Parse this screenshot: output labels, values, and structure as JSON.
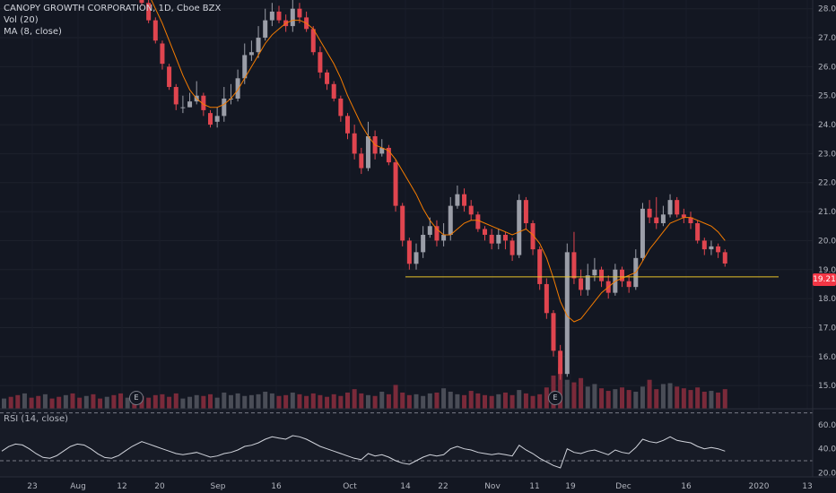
{
  "legend": {
    "title": "CANOPY GROWTH CORPORATION, 1D, Cboe BZX",
    "volume": "Vol (20)",
    "ma": "MA (8, close)",
    "rsi": "RSI (14, close)"
  },
  "last_price_label": "19.21",
  "earnings_marker": "E",
  "colors": {
    "background": "#131722",
    "up": "#9b9ea8",
    "down": "#e0454f",
    "vol_up": "#4a4d57",
    "vol_down": "#7a2a3a",
    "ma": "#f57c00",
    "support": "#e6c229",
    "rsi": "#d1d4dc",
    "axis_text": "#b2b5be"
  },
  "chart_data": {
    "type": "candlestick",
    "y_ticks": [
      "28.00",
      "27.00",
      "26.00",
      "25.00",
      "24.00",
      "23.00",
      "22.00",
      "21.00",
      "20.00",
      "19.00",
      "18.00",
      "17.00",
      "16.00",
      "15.00"
    ],
    "ylim": [
      14.2,
      28.3
    ],
    "x_ticks": [
      "23",
      "Aug",
      "12",
      "20",
      "Sep",
      "16",
      "Oct",
      "14",
      "22",
      "Nov",
      "11",
      "19",
      "Dec",
      "16",
      "2020",
      "13"
    ],
    "rsi_ticks": [
      "60.00",
      "40.00",
      "20.00"
    ],
    "rsi_ylim": [
      18,
      72
    ],
    "rsi_bands": [
      70,
      30
    ],
    "support_level": 18.75,
    "last_price": 19.21,
    "series": [
      {
        "name": "Candles",
        "o": [
          28.8,
          28.2,
          27.6,
          26.8,
          26.0,
          25.3,
          24.6,
          24.6,
          24.8,
          25.0,
          24.4,
          24.1,
          24.3,
          24.9,
          24.9,
          25.6,
          26.4,
          26.5,
          27.0,
          27.6,
          27.9,
          27.6,
          27.4,
          28.0,
          27.7,
          27.3,
          26.5,
          25.8,
          25.4,
          24.9,
          24.3,
          23.7,
          23.0,
          22.5,
          23.6,
          23.0,
          23.2,
          22.7,
          21.2,
          20.0,
          19.2,
          19.6,
          20.2,
          20.5,
          20.0,
          20.2,
          21.2,
          21.6,
          21.2,
          20.9,
          20.4,
          20.2,
          19.9,
          20.2,
          20.0,
          19.5,
          21.4,
          20.6,
          19.7,
          18.5,
          17.5,
          16.2,
          15.4,
          19.6,
          18.7,
          18.3,
          18.8,
          19.0,
          18.6,
          18.2,
          19.0,
          18.6,
          18.4,
          19.4,
          21.1,
          20.8,
          20.6,
          20.9,
          21.4,
          20.9,
          20.8,
          20.6,
          20.0,
          19.7,
          19.8,
          19.6
        ],
        "c": [
          28.2,
          27.6,
          26.9,
          26.1,
          25.3,
          24.7,
          24.6,
          24.8,
          25.0,
          24.5,
          24.0,
          24.3,
          24.9,
          24.9,
          25.6,
          26.4,
          26.5,
          27.0,
          27.6,
          27.9,
          27.6,
          27.4,
          28.0,
          27.7,
          27.3,
          26.5,
          25.8,
          25.4,
          24.9,
          24.3,
          23.7,
          23.0,
          22.5,
          23.6,
          23.0,
          23.2,
          22.7,
          21.2,
          20.0,
          19.2,
          19.6,
          20.2,
          20.5,
          20.0,
          20.2,
          21.2,
          21.6,
          21.2,
          20.9,
          20.4,
          20.2,
          19.9,
          20.2,
          20.0,
          19.5,
          21.4,
          20.6,
          19.7,
          18.5,
          17.5,
          16.2,
          15.4,
          19.6,
          18.7,
          18.3,
          18.8,
          19.0,
          18.6,
          18.2,
          19.0,
          18.6,
          18.4,
          19.4,
          21.1,
          20.8,
          20.6,
          20.9,
          21.4,
          20.9,
          20.8,
          20.6,
          20.0,
          19.7,
          19.8,
          19.6,
          19.21
        ],
        "h": [
          28.9,
          28.3,
          27.7,
          26.9,
          26.1,
          25.4,
          25.0,
          25.1,
          25.5,
          25.1,
          24.5,
          24.6,
          25.3,
          25.4,
          25.9,
          26.8,
          26.9,
          27.4,
          28.0,
          28.2,
          28.1,
          27.8,
          28.3,
          28.2,
          27.9,
          27.4,
          26.7,
          25.9,
          25.5,
          25.0,
          24.4,
          24.0,
          23.2,
          24.1,
          23.8,
          23.5,
          23.3,
          22.8,
          21.3,
          20.1,
          19.9,
          20.5,
          20.8,
          20.7,
          20.6,
          21.5,
          21.9,
          21.8,
          21.4,
          21.0,
          20.5,
          20.4,
          20.4,
          20.3,
          20.1,
          21.6,
          21.5,
          20.7,
          19.8,
          18.7,
          17.6,
          16.4,
          19.9,
          20.3,
          19.0,
          19.2,
          19.4,
          19.1,
          18.8,
          19.2,
          19.1,
          18.8,
          19.7,
          21.3,
          21.4,
          21.5,
          21.2,
          21.6,
          21.5,
          21.1,
          21.0,
          20.7,
          20.1,
          20.0,
          19.9,
          19.7
        ],
        "l": [
          28.1,
          27.5,
          26.8,
          25.9,
          25.2,
          24.5,
          24.4,
          24.6,
          24.7,
          24.3,
          23.9,
          23.9,
          24.1,
          24.7,
          24.8,
          25.4,
          26.2,
          26.3,
          26.9,
          27.4,
          27.5,
          27.2,
          27.2,
          27.5,
          27.2,
          26.4,
          25.6,
          25.2,
          24.8,
          24.1,
          23.5,
          22.8,
          22.3,
          22.4,
          22.8,
          22.9,
          22.6,
          21.0,
          19.8,
          19.0,
          19.0,
          19.4,
          20.1,
          19.8,
          19.8,
          20.0,
          21.1,
          21.0,
          20.7,
          20.3,
          20.0,
          19.7,
          19.7,
          19.7,
          19.3,
          19.4,
          20.4,
          19.5,
          18.3,
          17.3,
          16.0,
          15.2,
          15.3,
          18.5,
          18.1,
          18.1,
          18.6,
          18.4,
          18.0,
          18.1,
          18.4,
          18.2,
          18.3,
          19.3,
          20.6,
          20.4,
          20.5,
          20.8,
          20.8,
          20.6,
          20.4,
          19.9,
          19.5,
          19.5,
          19.4,
          19.1
        ]
      },
      {
        "name": "Vol",
        "values": [
          1.5,
          1.3,
          1.6,
          1.7,
          1.4,
          1.8,
          1.2,
          1.4,
          1.6,
          1.5,
          1.7,
          1.3,
          1.9,
          1.6,
          1.8,
          1.5,
          1.6,
          1.7,
          2.0,
          1.8,
          1.5,
          1.6,
          1.9,
          1.7,
          1.5,
          1.8,
          1.6,
          1.4,
          1.7,
          1.5,
          1.9,
          2.3,
          1.8,
          1.6,
          1.5,
          2.0,
          1.7,
          2.8,
          1.9,
          1.6,
          1.7,
          1.5,
          1.8,
          1.9,
          2.4,
          2.0,
          1.7,
          1.6,
          2.1,
          1.8,
          1.6,
          1.5,
          1.7,
          1.9,
          1.6,
          2.2,
          1.8,
          1.5,
          1.7,
          2.5,
          3.9,
          4.8,
          3.4,
          3.1,
          3.6,
          2.6,
          2.9,
          2.4,
          2.1,
          2.3,
          2.5,
          2.2,
          2.0,
          2.6,
          3.4,
          2.3,
          2.9,
          3.0,
          2.6,
          2.4,
          2.2,
          2.5,
          2.0,
          2.1,
          1.9,
          2.3
        ]
      },
      {
        "name": "MA",
        "values": [
          28.9,
          28.5,
          28.0,
          27.5,
          26.9,
          26.3,
          25.7,
          25.2,
          24.9,
          24.7,
          24.6,
          24.6,
          24.7,
          24.9,
          25.2,
          25.6,
          26.0,
          26.4,
          26.8,
          27.1,
          27.3,
          27.5,
          27.6,
          27.6,
          27.5,
          27.3,
          26.9,
          26.5,
          26.1,
          25.6,
          25.0,
          24.5,
          24.0,
          23.6,
          23.3,
          23.2,
          23.1,
          22.8,
          22.4,
          22.0,
          21.6,
          21.1,
          20.7,
          20.4,
          20.2,
          20.2,
          20.4,
          20.6,
          20.7,
          20.7,
          20.6,
          20.5,
          20.4,
          20.3,
          20.2,
          20.3,
          20.4,
          20.2,
          19.9,
          19.4,
          18.7,
          17.9,
          17.4,
          17.2,
          17.3,
          17.6,
          17.9,
          18.2,
          18.4,
          18.6,
          18.7,
          18.8,
          18.9,
          19.3,
          19.7,
          20.0,
          20.3,
          20.6,
          20.7,
          20.8,
          20.8,
          20.7,
          20.6,
          20.5,
          20.3,
          20.0
        ]
      },
      {
        "name": "RSI",
        "values": [
          46,
          44,
          42,
          40,
          38,
          36,
          35,
          36,
          37,
          35,
          33,
          34,
          36,
          37,
          39,
          42,
          43,
          45,
          48,
          50,
          49,
          48,
          51,
          50,
          48,
          45,
          42,
          40,
          38,
          36,
          34,
          32,
          31,
          36,
          34,
          35,
          33,
          30,
          28,
          27,
          30,
          33,
          35,
          34,
          35,
          40,
          42,
          40,
          39,
          37,
          36,
          35,
          36,
          35,
          34,
          43,
          39,
          36,
          32,
          29,
          26,
          24,
          40,
          37,
          36,
          38,
          39,
          37,
          35,
          39,
          37,
          36,
          41,
          48,
          46,
          45,
          47,
          50,
          47,
          46,
          45,
          42,
          40,
          41,
          40,
          38
        ]
      }
    ]
  }
}
